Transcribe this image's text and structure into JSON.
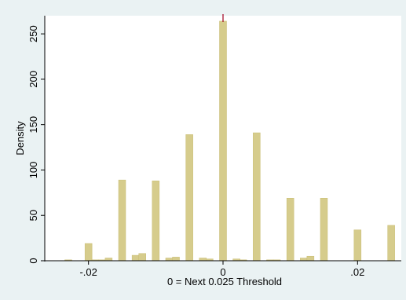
{
  "chart_data": {
    "type": "bar",
    "xlabel": "0 = Next 0.025 Threshold",
    "ylabel": "Density",
    "xlim": [
      -0.0265,
      0.0265
    ],
    "ylim": [
      0,
      270
    ],
    "xticks": [
      {
        "value": -0.02,
        "label": "-.02"
      },
      {
        "value": 0,
        "label": "0"
      },
      {
        "value": 0.02,
        "label": ".02"
      }
    ],
    "yticks": [
      {
        "value": 0,
        "label": "0"
      },
      {
        "value": 50,
        "label": "50"
      },
      {
        "value": 100,
        "label": "100"
      },
      {
        "value": 150,
        "label": "150"
      },
      {
        "value": 200,
        "label": "200"
      },
      {
        "value": 250,
        "label": "250"
      }
    ],
    "bin_width": 0.001,
    "bars": [
      {
        "x": -0.023,
        "y": 1
      },
      {
        "x": -0.02,
        "y": 19
      },
      {
        "x": -0.019,
        "y": 1
      },
      {
        "x": -0.018,
        "y": 1
      },
      {
        "x": -0.017,
        "y": 3
      },
      {
        "x": -0.015,
        "y": 89
      },
      {
        "x": -0.013,
        "y": 6
      },
      {
        "x": -0.012,
        "y": 8
      },
      {
        "x": -0.01,
        "y": 88
      },
      {
        "x": -0.008,
        "y": 3
      },
      {
        "x": -0.007,
        "y": 4
      },
      {
        "x": -0.005,
        "y": 139
      },
      {
        "x": -0.003,
        "y": 3
      },
      {
        "x": -0.002,
        "y": 2
      },
      {
        "x": 0.0,
        "y": 264
      },
      {
        "x": 0.002,
        "y": 2
      },
      {
        "x": 0.003,
        "y": 1
      },
      {
        "x": 0.005,
        "y": 141
      },
      {
        "x": 0.007,
        "y": 1
      },
      {
        "x": 0.008,
        "y": 1
      },
      {
        "x": 0.01,
        "y": 69
      },
      {
        "x": 0.012,
        "y": 3
      },
      {
        "x": 0.013,
        "y": 5
      },
      {
        "x": 0.015,
        "y": 69
      },
      {
        "x": 0.02,
        "y": 34
      },
      {
        "x": 0.025,
        "y": 39
      }
    ],
    "reference_line": {
      "x": 0
    },
    "grid": false,
    "colors": {
      "bar_fill": "#d6cc8c",
      "bar_edge": "#c8bc72",
      "reference_line": "#a0001e",
      "plot_bg": "#ffffff",
      "outer_bg": "#eaf2f3"
    }
  }
}
